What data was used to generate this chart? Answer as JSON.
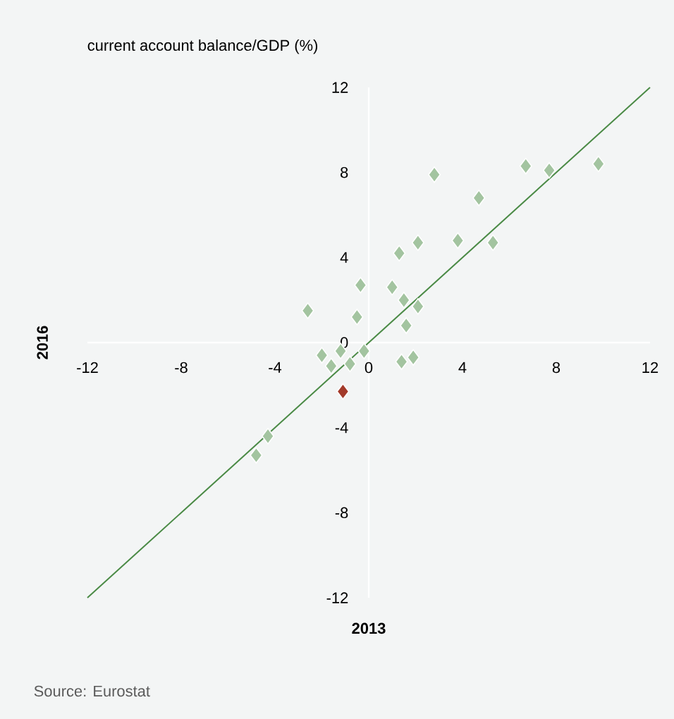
{
  "chart_data": {
    "type": "scatter",
    "title": "current account balance/GDP (%)",
    "xlabel": "2013",
    "ylabel": "2016",
    "xlim": [
      -12,
      12
    ],
    "ylim": [
      -12,
      12
    ],
    "xticks": [
      -12,
      -8,
      -4,
      0,
      4,
      8,
      12
    ],
    "yticks": [
      -12,
      -8,
      -4,
      0,
      4,
      8,
      12
    ],
    "marker": "diamond",
    "series": [
      {
        "color": "#a3c4a0",
        "x": [
          -4.8,
          -4.3,
          -2.6,
          -2.0,
          -1.6,
          -1.2,
          -0.8,
          -0.5,
          -0.35,
          -0.2,
          1.0,
          1.3,
          1.5,
          1.6,
          2.1,
          1.4,
          1.9,
          2.1,
          2.8,
          3.8,
          4.7,
          5.3,
          6.7,
          7.7,
          9.8
        ],
        "values": [
          -5.3,
          -4.4,
          1.5,
          -0.6,
          -1.1,
          -0.4,
          -1.0,
          1.2,
          2.7,
          -0.4,
          2.6,
          4.2,
          2.0,
          0.8,
          1.7,
          -0.9,
          -0.7,
          4.7,
          7.9,
          4.8,
          6.8,
          4.7,
          8.3,
          8.1,
          8.4
        ]
      },
      {
        "color": "#a33a2a",
        "x": [
          -1.1
        ],
        "values": [
          -2.3
        ]
      },
      {
        "type": "line",
        "color": "#4a8a45",
        "marker": "none",
        "line_style": "solid",
        "x": [
          -12,
          12
        ],
        "values": [
          -12,
          12
        ]
      }
    ],
    "annotations": [
      "Source: Eurostat"
    ]
  }
}
